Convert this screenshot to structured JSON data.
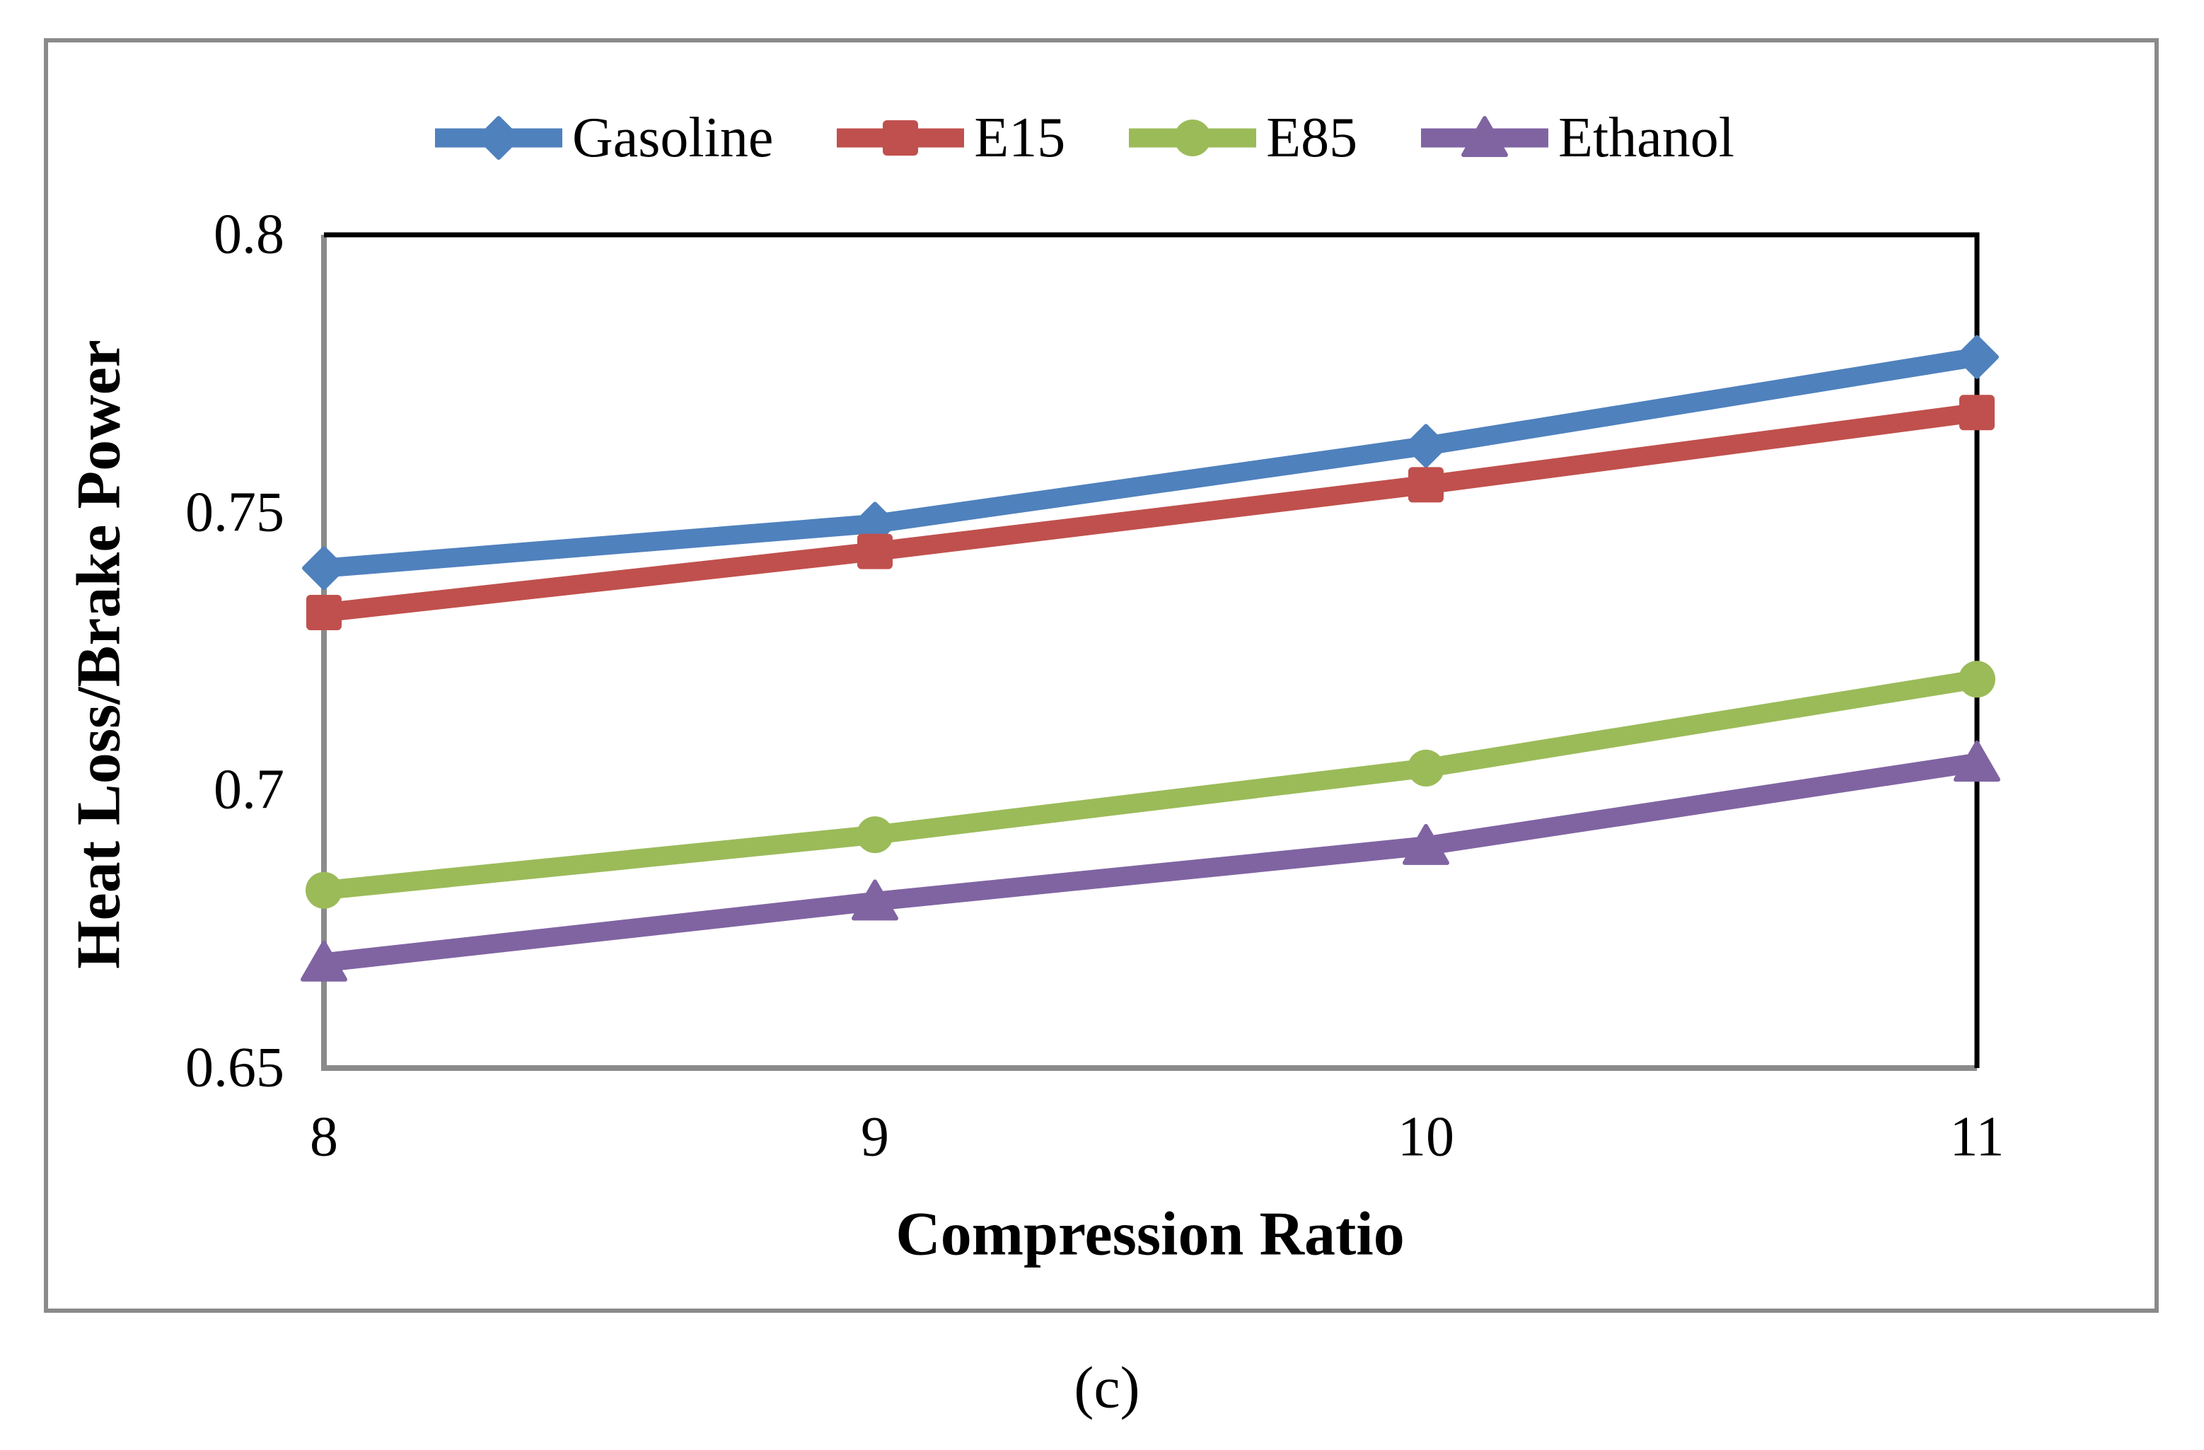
{
  "figure": {
    "caption": "(c)"
  },
  "chart_data": {
    "type": "line",
    "title": "",
    "xlabel": "Compression Ratio",
    "ylabel": "Heat Loss/Brake Power",
    "x": [
      8,
      9,
      10,
      11
    ],
    "xlim": [
      8,
      11
    ],
    "ylim": [
      0.65,
      0.8
    ],
    "x_ticks": [
      8,
      9,
      10,
      11
    ],
    "y_ticks": [
      0.8,
      0.75,
      0.7,
      0.65
    ],
    "x_tick_labels": [
      "8",
      "9",
      "10",
      "11"
    ],
    "y_tick_labels": [
      "0.8",
      "0.75",
      "0.7",
      "0.65"
    ],
    "grid": false,
    "legend_position": "top",
    "series": [
      {
        "name": "Gasoline",
        "color": "#4F81BD",
        "marker": "diamond",
        "values": [
          0.74,
          0.748,
          0.762,
          0.778
        ]
      },
      {
        "name": "E15",
        "color": "#C0504D",
        "marker": "square",
        "values": [
          0.732,
          0.743,
          0.755,
          0.768
        ]
      },
      {
        "name": "E85",
        "color": "#9BBB59",
        "marker": "circle",
        "values": [
          0.682,
          0.692,
          0.704,
          0.72
        ]
      },
      {
        "name": "Ethanol",
        "color": "#8064A2",
        "marker": "triangle",
        "values": [
          0.669,
          0.68,
          0.69,
          0.705
        ]
      }
    ],
    "axis_color": "#8a8a8a",
    "frame_color": "#000000",
    "outer_border_color": "#8a8a8a"
  }
}
